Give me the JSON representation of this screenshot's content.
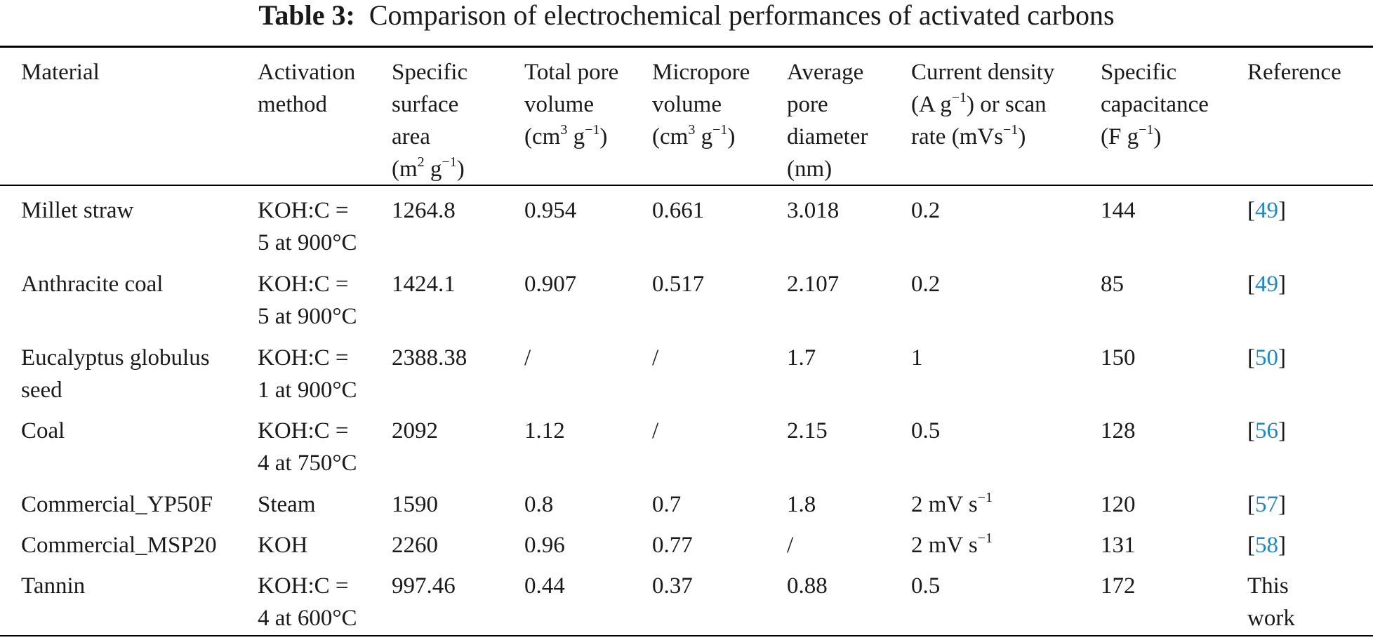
{
  "caption": {
    "label": "Table 3:",
    "text": "Comparison of electrochemical performances of activated carbons"
  },
  "headers": {
    "material": "Material",
    "activation": {
      "l1": "Activation",
      "l2": "method"
    },
    "ssa": {
      "l1": "Specific",
      "l2": "surface",
      "l3": "area",
      "l4_base": "(m",
      "l4_sup": "2",
      "l4_mid": " g",
      "l4_sup2": "−1",
      "l4_end": ")"
    },
    "tpv": {
      "l1": "Total pore",
      "l2": "volume",
      "l3_base": "(cm",
      "l3_sup": "3",
      "l3_mid": " g",
      "l3_sup2": "−1",
      "l3_end": ")"
    },
    "mpv": {
      "l1": "Micropore",
      "l2": "volume",
      "l3_base": "(cm",
      "l3_sup": "3",
      "l3_mid": " g",
      "l3_sup2": "−1",
      "l3_end": ")"
    },
    "apd": {
      "l1": "Average",
      "l2": "pore",
      "l3": "diameter",
      "l4": "(nm)"
    },
    "cd": {
      "l1": "Current density",
      "l2_base": "(A g",
      "l2_sup": "−1",
      "l2_end": ") or scan",
      "l3_base": "rate (mVs",
      "l3_sup": "−1",
      "l3_end": ")"
    },
    "sc": {
      "l1": "Specific",
      "l2": "capacitance",
      "l3_base": "(F g",
      "l3_sup": "−1",
      "l3_end": ")"
    },
    "reference": "Reference"
  },
  "rows": [
    {
      "material": [
        "Millet straw"
      ],
      "activation": [
        "KOH:C =",
        "5 at 900°C"
      ],
      "ssa": "1264.8",
      "tpv": "0.954",
      "mpv": "0.661",
      "apd": "3.018",
      "cd": "0.2",
      "sc": "144",
      "ref_open": "[",
      "ref_num": "49",
      "ref_close": "]"
    },
    {
      "material": [
        "Anthracite coal"
      ],
      "activation": [
        "KOH:C =",
        "5 at 900°C"
      ],
      "ssa": "1424.1",
      "tpv": "0.907",
      "mpv": "0.517",
      "apd": "2.107",
      "cd": "0.2",
      "sc": "85",
      "ref_open": "[",
      "ref_num": "49",
      "ref_close": "]"
    },
    {
      "material": [
        "Eucalyptus globulus",
        "seed"
      ],
      "activation": [
        "KOH:C =",
        "1 at 900°C"
      ],
      "ssa": "2388.38",
      "tpv": "/",
      "mpv": "/",
      "apd": "1.7",
      "cd": "1",
      "sc": "150",
      "ref_open": "[",
      "ref_num": "50",
      "ref_close": "]"
    },
    {
      "material": [
        "Coal"
      ],
      "activation": [
        "KOH:C =",
        "4 at 750°C"
      ],
      "ssa": "2092",
      "tpv": "1.12",
      "mpv": "/",
      "apd": "2.15",
      "cd": "0.5",
      "sc": "128",
      "ref_open": "[",
      "ref_num": "56",
      "ref_close": "]"
    },
    {
      "material": [
        "Commercial_YP50F"
      ],
      "activation": [
        "Steam"
      ],
      "ssa": "1590",
      "tpv": "0.8",
      "mpv": "0.7",
      "apd": "1.8",
      "cd_base": "2 mV s",
      "cd_sup": "−1",
      "sc": "120",
      "ref_open": "[",
      "ref_num": "57",
      "ref_close": "]"
    },
    {
      "material": [
        "Commercial_MSP20"
      ],
      "activation": [
        "KOH"
      ],
      "ssa": "2260",
      "tpv": "0.96",
      "mpv": "0.77",
      "apd": "/",
      "cd_base": "2 mV s",
      "cd_sup": "−1",
      "sc": "131",
      "ref_open": "[",
      "ref_num": "58",
      "ref_close": "]"
    },
    {
      "material": [
        "Tannin"
      ],
      "activation": [
        "KOH:C =",
        "4 at 600°C"
      ],
      "ssa": "997.46",
      "tpv": "0.44",
      "mpv": "0.37",
      "apd": "0.88",
      "cd": "0.5",
      "sc": "172",
      "ref_text": [
        "This",
        "work"
      ]
    }
  ]
}
